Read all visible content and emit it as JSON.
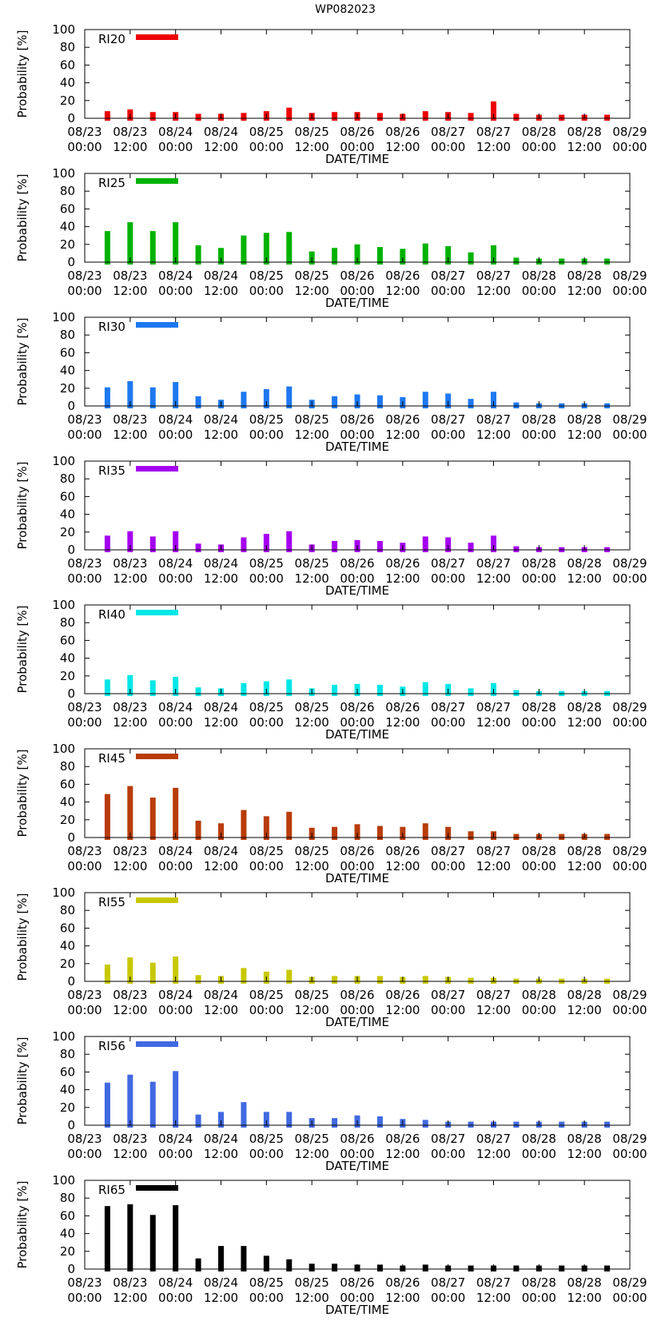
{
  "figure_title": "WP082023",
  "colors": {
    "RI20": "#ee0000",
    "RI25": "#00b200",
    "RI30": "#1e78f0",
    "RI35": "#a500f0",
    "RI40": "#00e6e6",
    "RI45": "#b83c08",
    "RI55": "#c8c800",
    "RI56": "#4169e1",
    "RI65": "#000000"
  },
  "chart_data": [
    {
      "type": "bar",
      "legend": "RI20",
      "color_key": "RI20",
      "title": "",
      "xlabel": "DATE/TIME",
      "ylabel": "Probability [%]",
      "ylim": [
        0,
        100
      ],
      "yticks": [
        0,
        20,
        40,
        60,
        80,
        100
      ],
      "xlim_hours": [
        0,
        144
      ],
      "xtick_labels": [
        [
          "08/23",
          "00:00"
        ],
        [
          "08/23",
          "12:00"
        ],
        [
          "08/24",
          "00:00"
        ],
        [
          "08/24",
          "12:00"
        ],
        [
          "08/25",
          "00:00"
        ],
        [
          "08/25",
          "12:00"
        ],
        [
          "08/26",
          "00:00"
        ],
        [
          "08/26",
          "12:00"
        ],
        [
          "08/27",
          "00:00"
        ],
        [
          "08/27",
          "12:00"
        ],
        [
          "08/28",
          "00:00"
        ],
        [
          "08/28",
          "12:00"
        ],
        [
          "08/29",
          "00:00"
        ]
      ],
      "x_hours": [
        6,
        12,
        18,
        24,
        30,
        36,
        42,
        48,
        54,
        60,
        66,
        72,
        78,
        84,
        90,
        96,
        102,
        108,
        114,
        120,
        126,
        132,
        138
      ],
      "values": [
        8,
        10,
        7,
        7,
        5,
        5,
        6,
        8,
        12,
        6,
        7,
        7,
        6,
        5,
        8,
        7,
        6,
        19,
        5,
        4,
        4,
        4,
        4
      ]
    },
    {
      "type": "bar",
      "legend": "RI25",
      "color_key": "RI25",
      "title": "",
      "xlabel": "DATE/TIME",
      "ylabel": "Probability [%]",
      "ylim": [
        0,
        100
      ],
      "yticks": [
        0,
        20,
        40,
        60,
        80,
        100
      ],
      "xlim_hours": [
        0,
        144
      ],
      "xtick_labels": [
        [
          "08/23",
          "00:00"
        ],
        [
          "08/23",
          "12:00"
        ],
        [
          "08/24",
          "00:00"
        ],
        [
          "08/24",
          "12:00"
        ],
        [
          "08/25",
          "00:00"
        ],
        [
          "08/25",
          "12:00"
        ],
        [
          "08/26",
          "00:00"
        ],
        [
          "08/26",
          "12:00"
        ],
        [
          "08/27",
          "00:00"
        ],
        [
          "08/27",
          "12:00"
        ],
        [
          "08/28",
          "00:00"
        ],
        [
          "08/28",
          "12:00"
        ],
        [
          "08/29",
          "00:00"
        ]
      ],
      "x_hours": [
        6,
        12,
        18,
        24,
        30,
        36,
        42,
        48,
        54,
        60,
        66,
        72,
        78,
        84,
        90,
        96,
        102,
        108,
        114,
        120,
        126,
        132,
        138
      ],
      "values": [
        35,
        45,
        35,
        45,
        19,
        16,
        30,
        33,
        34,
        12,
        16,
        20,
        17,
        15,
        21,
        18,
        11,
        19,
        5,
        4,
        4,
        4,
        4
      ]
    },
    {
      "type": "bar",
      "legend": "RI30",
      "color_key": "RI30",
      "title": "",
      "xlabel": "DATE/TIME",
      "ylabel": "Probability [%]",
      "ylim": [
        0,
        100
      ],
      "yticks": [
        0,
        20,
        40,
        60,
        80,
        100
      ],
      "xlim_hours": [
        0,
        144
      ],
      "xtick_labels": [
        [
          "08/23",
          "00:00"
        ],
        [
          "08/23",
          "12:00"
        ],
        [
          "08/24",
          "00:00"
        ],
        [
          "08/24",
          "12:00"
        ],
        [
          "08/25",
          "00:00"
        ],
        [
          "08/25",
          "12:00"
        ],
        [
          "08/26",
          "00:00"
        ],
        [
          "08/26",
          "12:00"
        ],
        [
          "08/27",
          "00:00"
        ],
        [
          "08/27",
          "12:00"
        ],
        [
          "08/28",
          "00:00"
        ],
        [
          "08/28",
          "12:00"
        ],
        [
          "08/29",
          "00:00"
        ]
      ],
      "x_hours": [
        6,
        12,
        18,
        24,
        30,
        36,
        42,
        48,
        54,
        60,
        66,
        72,
        78,
        84,
        90,
        96,
        102,
        108,
        114,
        120,
        126,
        132,
        138
      ],
      "values": [
        21,
        28,
        21,
        27,
        11,
        7,
        16,
        19,
        22,
        7,
        11,
        13,
        12,
        10,
        16,
        14,
        8,
        16,
        4,
        3,
        3,
        3,
        3
      ]
    },
    {
      "type": "bar",
      "legend": "RI35",
      "color_key": "RI35",
      "title": "",
      "xlabel": "DATE/TIME",
      "ylabel": "Probability [%]",
      "ylim": [
        0,
        100
      ],
      "yticks": [
        0,
        20,
        40,
        60,
        80,
        100
      ],
      "xlim_hours": [
        0,
        144
      ],
      "xtick_labels": [
        [
          "08/23",
          "00:00"
        ],
        [
          "08/23",
          "12:00"
        ],
        [
          "08/24",
          "00:00"
        ],
        [
          "08/24",
          "12:00"
        ],
        [
          "08/25",
          "00:00"
        ],
        [
          "08/25",
          "12:00"
        ],
        [
          "08/26",
          "00:00"
        ],
        [
          "08/26",
          "12:00"
        ],
        [
          "08/27",
          "00:00"
        ],
        [
          "08/27",
          "12:00"
        ],
        [
          "08/28",
          "00:00"
        ],
        [
          "08/28",
          "12:00"
        ],
        [
          "08/29",
          "00:00"
        ]
      ],
      "x_hours": [
        6,
        12,
        18,
        24,
        30,
        36,
        42,
        48,
        54,
        60,
        66,
        72,
        78,
        84,
        90,
        96,
        102,
        108,
        114,
        120,
        126,
        132,
        138
      ],
      "values": [
        16,
        21,
        15,
        21,
        7,
        6,
        14,
        18,
        21,
        6,
        10,
        11,
        10,
        8,
        15,
        14,
        8,
        16,
        4,
        3,
        3,
        3,
        3
      ]
    },
    {
      "type": "bar",
      "legend": "RI40",
      "color_key": "RI40",
      "title": "",
      "xlabel": "DATE/TIME",
      "ylabel": "Probability [%]",
      "ylim": [
        0,
        100
      ],
      "yticks": [
        0,
        20,
        40,
        60,
        80,
        100
      ],
      "xlim_hours": [
        0,
        144
      ],
      "xtick_labels": [
        [
          "08/23",
          "00:00"
        ],
        [
          "08/23",
          "12:00"
        ],
        [
          "08/24",
          "00:00"
        ],
        [
          "08/24",
          "12:00"
        ],
        [
          "08/25",
          "00:00"
        ],
        [
          "08/25",
          "12:00"
        ],
        [
          "08/26",
          "00:00"
        ],
        [
          "08/26",
          "12:00"
        ],
        [
          "08/27",
          "00:00"
        ],
        [
          "08/27",
          "12:00"
        ],
        [
          "08/28",
          "00:00"
        ],
        [
          "08/28",
          "12:00"
        ],
        [
          "08/29",
          "00:00"
        ]
      ],
      "x_hours": [
        6,
        12,
        18,
        24,
        30,
        36,
        42,
        48,
        54,
        60,
        66,
        72,
        78,
        84,
        90,
        96,
        102,
        108,
        114,
        120,
        126,
        132,
        138
      ],
      "values": [
        16,
        21,
        15,
        19,
        7,
        6,
        12,
        14,
        16,
        6,
        10,
        11,
        10,
        8,
        13,
        11,
        6,
        12,
        4,
        3,
        3,
        3,
        3
      ]
    },
    {
      "type": "bar",
      "legend": "RI45",
      "color_key": "RI45",
      "title": "",
      "xlabel": "DATE/TIME",
      "ylabel": "Probability [%]",
      "ylim": [
        0,
        100
      ],
      "yticks": [
        0,
        20,
        40,
        60,
        80,
        100
      ],
      "xlim_hours": [
        0,
        144
      ],
      "xtick_labels": [
        [
          "08/23",
          "00:00"
        ],
        [
          "08/23",
          "12:00"
        ],
        [
          "08/24",
          "00:00"
        ],
        [
          "08/24",
          "12:00"
        ],
        [
          "08/25",
          "00:00"
        ],
        [
          "08/25",
          "12:00"
        ],
        [
          "08/26",
          "00:00"
        ],
        [
          "08/26",
          "12:00"
        ],
        [
          "08/27",
          "00:00"
        ],
        [
          "08/27",
          "12:00"
        ],
        [
          "08/28",
          "00:00"
        ],
        [
          "08/28",
          "12:00"
        ],
        [
          "08/29",
          "00:00"
        ]
      ],
      "x_hours": [
        6,
        12,
        18,
        24,
        30,
        36,
        42,
        48,
        54,
        60,
        66,
        72,
        78,
        84,
        90,
        96,
        102,
        108,
        114,
        120,
        126,
        132,
        138
      ],
      "values": [
        49,
        58,
        45,
        56,
        19,
        16,
        31,
        24,
        29,
        11,
        12,
        15,
        13,
        12,
        16,
        12,
        7,
        7,
        4,
        4,
        4,
        4,
        4
      ]
    },
    {
      "type": "bar",
      "legend": "RI55",
      "color_key": "RI55",
      "title": "",
      "xlabel": "DATE/TIME",
      "ylabel": "Probability [%]",
      "ylim": [
        0,
        100
      ],
      "yticks": [
        0,
        20,
        40,
        60,
        80,
        100
      ],
      "xlim_hours": [
        0,
        144
      ],
      "xtick_labels": [
        [
          "08/23",
          "00:00"
        ],
        [
          "08/23",
          "12:00"
        ],
        [
          "08/24",
          "00:00"
        ],
        [
          "08/24",
          "12:00"
        ],
        [
          "08/25",
          "00:00"
        ],
        [
          "08/25",
          "12:00"
        ],
        [
          "08/26",
          "00:00"
        ],
        [
          "08/26",
          "12:00"
        ],
        [
          "08/27",
          "00:00"
        ],
        [
          "08/27",
          "12:00"
        ],
        [
          "08/28",
          "00:00"
        ],
        [
          "08/28",
          "12:00"
        ],
        [
          "08/29",
          "00:00"
        ]
      ],
      "x_hours": [
        6,
        12,
        18,
        24,
        30,
        36,
        42,
        48,
        54,
        60,
        66,
        72,
        78,
        84,
        90,
        96,
        102,
        108,
        114,
        120,
        126,
        132,
        138
      ],
      "values": [
        19,
        27,
        21,
        28,
        7,
        6,
        15,
        11,
        13,
        5,
        6,
        6,
        6,
        5,
        6,
        5,
        4,
        4,
        3,
        3,
        3,
        3,
        3
      ]
    },
    {
      "type": "bar",
      "legend": "RI56",
      "color_key": "RI56",
      "title": "",
      "xlabel": "DATE/TIME",
      "ylabel": "Probability [%]",
      "ylim": [
        0,
        100
      ],
      "yticks": [
        0,
        20,
        40,
        60,
        80,
        100
      ],
      "xlim_hours": [
        0,
        144
      ],
      "xtick_labels": [
        [
          "08/23",
          "00:00"
        ],
        [
          "08/23",
          "12:00"
        ],
        [
          "08/24",
          "00:00"
        ],
        [
          "08/24",
          "12:00"
        ],
        [
          "08/25",
          "00:00"
        ],
        [
          "08/25",
          "12:00"
        ],
        [
          "08/26",
          "00:00"
        ],
        [
          "08/26",
          "12:00"
        ],
        [
          "08/27",
          "00:00"
        ],
        [
          "08/27",
          "12:00"
        ],
        [
          "08/28",
          "00:00"
        ],
        [
          "08/28",
          "12:00"
        ],
        [
          "08/29",
          "00:00"
        ]
      ],
      "x_hours": [
        6,
        12,
        18,
        24,
        30,
        36,
        42,
        48,
        54,
        60,
        66,
        72,
        78,
        84,
        90,
        96,
        102,
        108,
        114,
        120,
        126,
        132,
        138
      ],
      "values": [
        48,
        57,
        49,
        61,
        12,
        15,
        26,
        15,
        15,
        8,
        8,
        11,
        10,
        7,
        6,
        4,
        4,
        4,
        4,
        4,
        4,
        4,
        4
      ]
    },
    {
      "type": "bar",
      "legend": "RI65",
      "color_key": "RI65",
      "title": "",
      "xlabel": "DATE/TIME",
      "ylabel": "Probability [%]",
      "ylim": [
        0,
        100
      ],
      "yticks": [
        0,
        20,
        40,
        60,
        80,
        100
      ],
      "xlim_hours": [
        0,
        144
      ],
      "xtick_labels": [
        [
          "08/23",
          "00:00"
        ],
        [
          "08/23",
          "12:00"
        ],
        [
          "08/24",
          "00:00"
        ],
        [
          "08/24",
          "12:00"
        ],
        [
          "08/25",
          "00:00"
        ],
        [
          "08/25",
          "12:00"
        ],
        [
          "08/26",
          "00:00"
        ],
        [
          "08/26",
          "12:00"
        ],
        [
          "08/27",
          "00:00"
        ],
        [
          "08/27",
          "12:00"
        ],
        [
          "08/28",
          "00:00"
        ],
        [
          "08/28",
          "12:00"
        ],
        [
          "08/29",
          "00:00"
        ]
      ],
      "x_hours": [
        6,
        12,
        18,
        24,
        30,
        36,
        42,
        48,
        54,
        60,
        66,
        72,
        78,
        84,
        90,
        96,
        102,
        108,
        114,
        120,
        126,
        132,
        138
      ],
      "values": [
        71,
        73,
        61,
        72,
        12,
        26,
        26,
        15,
        11,
        6,
        6,
        5,
        5,
        4,
        5,
        4,
        4,
        4,
        4,
        4,
        4,
        4,
        4
      ]
    }
  ]
}
